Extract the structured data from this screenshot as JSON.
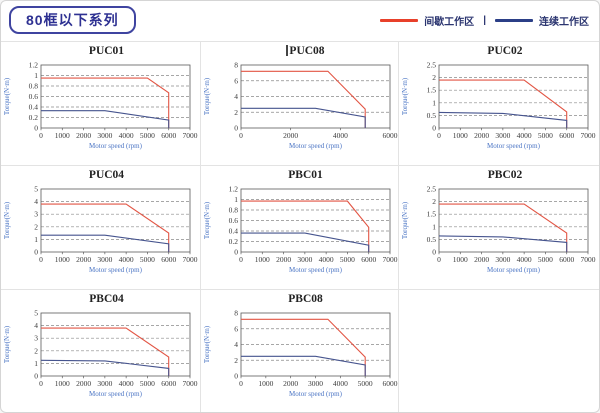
{
  "page": {
    "title": "80框以下系列"
  },
  "legend": {
    "intermittent_label": "间歇工作区",
    "separator": "|",
    "continuous_label": "连续工作区",
    "position": "top-right"
  },
  "colors": {
    "badge_text": "#2e3192",
    "badge_border": "#3f44a0",
    "legend_intermittent": "#e8402a",
    "legend_continuous": "#2b3f87",
    "curve_intermittent": "#e25544",
    "curve_continuous": "#46548e",
    "grid": "#8a8a8a",
    "plot_border": "#5a5a5a",
    "axis_label": "#4a74c4",
    "cell_border": "#e3e3e3"
  },
  "chart_data": [
    {
      "type": "line",
      "title": "PUC01",
      "xlabel": "Motor speed (rpm)",
      "ylabel": "Torque(N·m)",
      "xlim": [
        0,
        7000
      ],
      "xstep": 1000,
      "ylim": [
        0,
        1.2
      ],
      "ystep": 0.2,
      "grid": "dashed-horizontal",
      "series": [
        {
          "name": "间歇工作区",
          "zone": "intermittent",
          "points": [
            [
              0,
              0.95
            ],
            [
              5000,
              0.95
            ],
            [
              6000,
              0.67
            ],
            [
              6000,
              0
            ]
          ]
        },
        {
          "name": "连续工作区",
          "zone": "continuous",
          "points": [
            [
              0,
              0.33
            ],
            [
              3000,
              0.33
            ],
            [
              6000,
              0.15
            ],
            [
              6000,
              0
            ]
          ]
        }
      ]
    },
    {
      "type": "line",
      "title": "PUC08",
      "xlabel": "Motor speed (rpm)",
      "ylabel": "Torque(N·m)",
      "xlim": [
        0,
        6000
      ],
      "xstep": 2000,
      "ylim": [
        0,
        8
      ],
      "ystep": 2,
      "grid": "dashed-horizontal",
      "series": [
        {
          "name": "间歇工作区",
          "zone": "intermittent",
          "points": [
            [
              0,
              7.2
            ],
            [
              3500,
              7.2
            ],
            [
              5000,
              2.4
            ],
            [
              5000,
              0
            ]
          ]
        },
        {
          "name": "连续工作区",
          "zone": "continuous",
          "points": [
            [
              0,
              2.5
            ],
            [
              3000,
              2.5
            ],
            [
              5000,
              1.4
            ],
            [
              5000,
              0
            ]
          ]
        }
      ]
    },
    {
      "type": "line",
      "title": "PUC02",
      "xlabel": "Motor speed (rpm)",
      "ylabel": "Torque(N·m)",
      "xlim": [
        0,
        7000
      ],
      "xstep": 1000,
      "ylim": [
        0,
        2.5
      ],
      "ystep": 0.5,
      "grid": "dashed-horizontal",
      "series": [
        {
          "name": "间歇工作区",
          "zone": "intermittent",
          "points": [
            [
              0,
              1.9
            ],
            [
              4000,
              1.9
            ],
            [
              6000,
              0.64
            ],
            [
              6000,
              0
            ]
          ]
        },
        {
          "name": "连续工作区",
          "zone": "continuous",
          "points": [
            [
              0,
              0.62
            ],
            [
              3000,
              0.58
            ],
            [
              6000,
              0.3
            ],
            [
              6000,
              0
            ]
          ]
        }
      ]
    },
    {
      "type": "line",
      "title": "PUC04",
      "xlabel": "Motor speed (rpm)",
      "ylabel": "Torque(N·m)",
      "xlim": [
        0,
        7000
      ],
      "xstep": 1000,
      "ylim": [
        0,
        5
      ],
      "ystep": 1,
      "grid": "dashed-horizontal",
      "series": [
        {
          "name": "间歇工作区",
          "zone": "intermittent",
          "points": [
            [
              0,
              3.8
            ],
            [
              4000,
              3.8
            ],
            [
              6000,
              1.5
            ],
            [
              6000,
              0
            ]
          ]
        },
        {
          "name": "连续工作区",
          "zone": "continuous",
          "points": [
            [
              0,
              1.33
            ],
            [
              3000,
              1.33
            ],
            [
              6000,
              0.65
            ],
            [
              6000,
              0
            ]
          ]
        }
      ]
    },
    {
      "type": "line",
      "title": "PBC01",
      "xlabel": "Motor speed (rpm)",
      "ylabel": "Torque(N·m)",
      "xlim": [
        0,
        7000
      ],
      "xstep": 1000,
      "ylim": [
        0,
        1.2
      ],
      "ystep": 0.2,
      "grid": "dashed-horizontal",
      "series": [
        {
          "name": "间歇工作区",
          "zone": "intermittent",
          "points": [
            [
              0,
              0.97
            ],
            [
              5000,
              0.97
            ],
            [
              6000,
              0.47
            ],
            [
              6000,
              0
            ]
          ]
        },
        {
          "name": "连续工作区",
          "zone": "continuous",
          "points": [
            [
              0,
              0.36
            ],
            [
              3000,
              0.36
            ],
            [
              6000,
              0.13
            ],
            [
              6000,
              0
            ]
          ]
        }
      ]
    },
    {
      "type": "line",
      "title": "PBC02",
      "xlabel": "Motor speed (rpm)",
      "ylabel": "Torque(N·m)",
      "xlim": [
        0,
        7000
      ],
      "xstep": 1000,
      "ylim": [
        0,
        2.5
      ],
      "ystep": 0.5,
      "grid": "dashed-horizontal",
      "series": [
        {
          "name": "间歇工作区",
          "zone": "intermittent",
          "points": [
            [
              0,
              1.9
            ],
            [
              4000,
              1.9
            ],
            [
              6000,
              0.75
            ],
            [
              6000,
              0
            ]
          ]
        },
        {
          "name": "连续工作区",
          "zone": "continuous",
          "points": [
            [
              0,
              0.64
            ],
            [
              3000,
              0.6
            ],
            [
              6000,
              0.38
            ],
            [
              6000,
              0
            ]
          ]
        }
      ]
    },
    {
      "type": "line",
      "title": "PBC04",
      "xlabel": "Motor speed (rpm)",
      "ylabel": "Torque(N·m)",
      "xlim": [
        0,
        7000
      ],
      "xstep": 1000,
      "ylim": [
        0,
        5
      ],
      "ystep": 1,
      "grid": "dashed-horizontal",
      "series": [
        {
          "name": "间歇工作区",
          "zone": "intermittent",
          "points": [
            [
              0,
              3.8
            ],
            [
              4000,
              3.8
            ],
            [
              6000,
              1.5
            ],
            [
              6000,
              0
            ]
          ]
        },
        {
          "name": "连续工作区",
          "zone": "continuous",
          "points": [
            [
              0,
              1.25
            ],
            [
              3000,
              1.2
            ],
            [
              6000,
              0.6
            ],
            [
              6000,
              0
            ]
          ]
        }
      ]
    },
    {
      "type": "line",
      "title": "PBC08",
      "xlabel": "Motor speed (rpm)",
      "ylabel": "Torque(N·m)",
      "xlim": [
        0,
        6000
      ],
      "xstep": 1000,
      "ylim": [
        0,
        8
      ],
      "ystep": 2,
      "grid": "dashed-horizontal",
      "series": [
        {
          "name": "间歇工作区",
          "zone": "intermittent",
          "points": [
            [
              0,
              7.2
            ],
            [
              3500,
              7.2
            ],
            [
              5000,
              2.4
            ],
            [
              5000,
              0
            ]
          ]
        },
        {
          "name": "连续工作区",
          "zone": "continuous",
          "points": [
            [
              0,
              2.5
            ],
            [
              3000,
              2.5
            ],
            [
              5000,
              1.4
            ],
            [
              5000,
              0
            ]
          ]
        }
      ]
    }
  ]
}
